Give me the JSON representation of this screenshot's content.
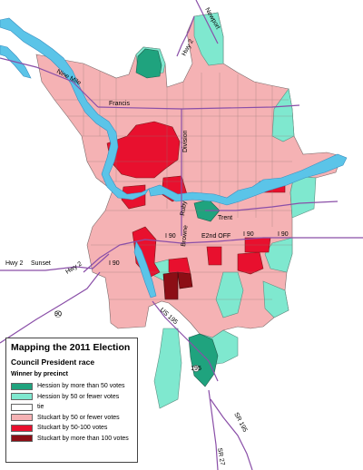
{
  "map": {
    "labels": {
      "francis": "Francis",
      "division": "Division",
      "nine_mile": "Nine Mile",
      "hwy2_north": "Hwy 2",
      "newport": "Newport",
      "ruby": "Ruby",
      "trent": "Trent",
      "browne": "Browne",
      "e2nd_off": "E2nd OFF",
      "i90_left": "I 90",
      "i90_mid": "I 90",
      "i90_right": "I 90",
      "i90_west": "I 90",
      "hwy2_west": "Hwy 2",
      "sunset": "Sunset",
      "hwy2_sw": "Hwy 2",
      "us195": "US 195",
      "sr195": "SR 195",
      "sr27": "SR 27",
      "marker_90_west": "90",
      "marker_195": "195"
    },
    "colors": {
      "hession_more_50": "#1fa37e",
      "hession_50_fewer": "#7fe8cf",
      "tie": "#ffffff",
      "stuckart_50_fewer": "#f5b2b4",
      "stuckart_50_100": "#e8102e",
      "stuckart_more_100": "#8c0e15",
      "river": "#5bc4e8",
      "road": "#8a4fa8"
    }
  },
  "legend": {
    "title": "Mapping the 2011 Election",
    "subtitle": "Council President race",
    "heading": "Winner by precinct",
    "items": [
      {
        "label": "Hession by more than 50 votes",
        "color": "#1fa37e"
      },
      {
        "label": "Hession by 50 or fewer votes",
        "color": "#7fe8cf"
      },
      {
        "label": "tie",
        "color": "#ffffff"
      },
      {
        "label": "Stuckart by 50 or fewer votes",
        "color": "#f5b2b4"
      },
      {
        "label": "Stuckart by 50-100 votes",
        "color": "#e8102e"
      },
      {
        "label": "Stuckart by more than 100 votes",
        "color": "#8c0e15"
      }
    ]
  }
}
